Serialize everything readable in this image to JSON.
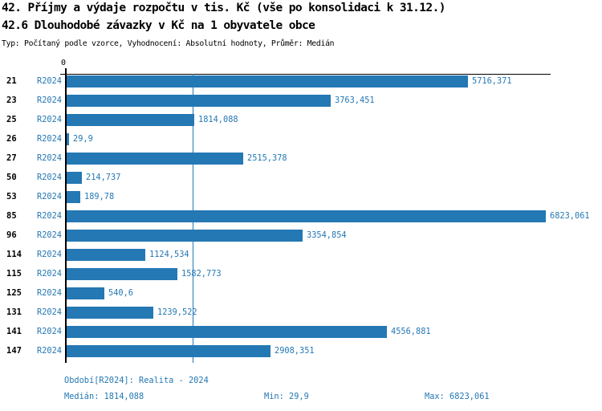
{
  "accent_color": "#2478b4",
  "header": {
    "title": "42. Příjmy a výdaje rozpočtu v tis. Kč (vše po konsolidaci k 31.12.)",
    "subtitle": "42.6 Dlouhodobé závazky v Kč na 1 obyvatele obce",
    "meta": "Typ: Počítaný podle vzorce, Vyhodnocení: Absolutní hodnoty, Průměr: Medián"
  },
  "chart_data": {
    "type": "bar",
    "orientation": "horizontal",
    "title": "42.6 Dlouhodobé závazky v Kč na 1 obyvatele obce",
    "axis": {
      "zero_label": "0"
    },
    "xlim": [
      0,
      6823.061
    ],
    "grid": "single median line",
    "median_value": 1814.088,
    "bar_color": "#2478b4",
    "rows": [
      {
        "category": "21",
        "series": "R2024",
        "value": 5716.371,
        "label": "5716,371"
      },
      {
        "category": "23",
        "series": "R2024",
        "value": 3763.451,
        "label": "3763,451"
      },
      {
        "category": "25",
        "series": "R2024",
        "value": 1814.088,
        "label": "1814,088"
      },
      {
        "category": "26",
        "series": "R2024",
        "value": 29.9,
        "label": "29,9"
      },
      {
        "category": "27",
        "series": "R2024",
        "value": 2515.378,
        "label": "2515,378"
      },
      {
        "category": "50",
        "series": "R2024",
        "value": 214.737,
        "label": "214,737"
      },
      {
        "category": "53",
        "series": "R2024",
        "value": 189.78,
        "label": "189,78"
      },
      {
        "category": "85",
        "series": "R2024",
        "value": 6823.061,
        "label": "6823,061"
      },
      {
        "category": "96",
        "series": "R2024",
        "value": 3354.854,
        "label": "3354,854"
      },
      {
        "category": "114",
        "series": "R2024",
        "value": 1124.534,
        "label": "1124,534"
      },
      {
        "category": "115",
        "series": "R2024",
        "value": 1582.773,
        "label": "1582,773"
      },
      {
        "category": "125",
        "series": "R2024",
        "value": 540.6,
        "label": "540,6"
      },
      {
        "category": "131",
        "series": "R2024",
        "value": 1239.522,
        "label": "1239,522"
      },
      {
        "category": "141",
        "series": "R2024",
        "value": 4556.881,
        "label": "4556,881"
      },
      {
        "category": "147",
        "series": "R2024",
        "value": 2908.351,
        "label": "2908,351"
      }
    ]
  },
  "footer": {
    "period": "Období[R2024]: Realita - 2024",
    "median": "Medián: 1814,088",
    "min": "Min: 29,9",
    "max": "Max: 6823,061"
  }
}
